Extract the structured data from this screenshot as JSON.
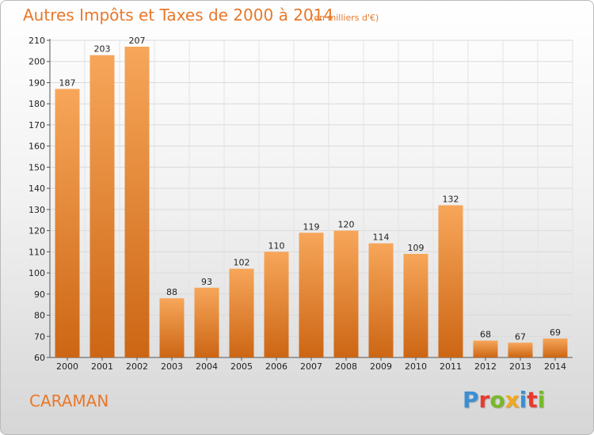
{
  "header": {
    "title": "Autres Impôts et Taxes de 2000 à 2014",
    "subtitle": "(en milliers d'€)"
  },
  "footer": {
    "commune": "CARAMAN",
    "logo": "Proxiti"
  },
  "colors": {
    "bar_light": "#f7a65a",
    "bar_dark": "#cc6614",
    "title": "#e8782a"
  },
  "chart_data": {
    "type": "bar",
    "title": "Autres Impôts et Taxes de 2000 à 2014",
    "xlabel": "",
    "ylabel": "",
    "categories": [
      "2000",
      "2001",
      "2002",
      "2003",
      "2004",
      "2005",
      "2006",
      "2007",
      "2008",
      "2009",
      "2010",
      "2011",
      "2012",
      "2013",
      "2014"
    ],
    "values": [
      187,
      203,
      207,
      88,
      93,
      102,
      110,
      119,
      120,
      114,
      109,
      132,
      68,
      67,
      69
    ],
    "ylim": [
      60,
      210
    ],
    "yticks": [
      60,
      70,
      80,
      90,
      100,
      110,
      120,
      130,
      140,
      150,
      160,
      170,
      180,
      190,
      200,
      210
    ],
    "grid": true,
    "legend": "none"
  }
}
